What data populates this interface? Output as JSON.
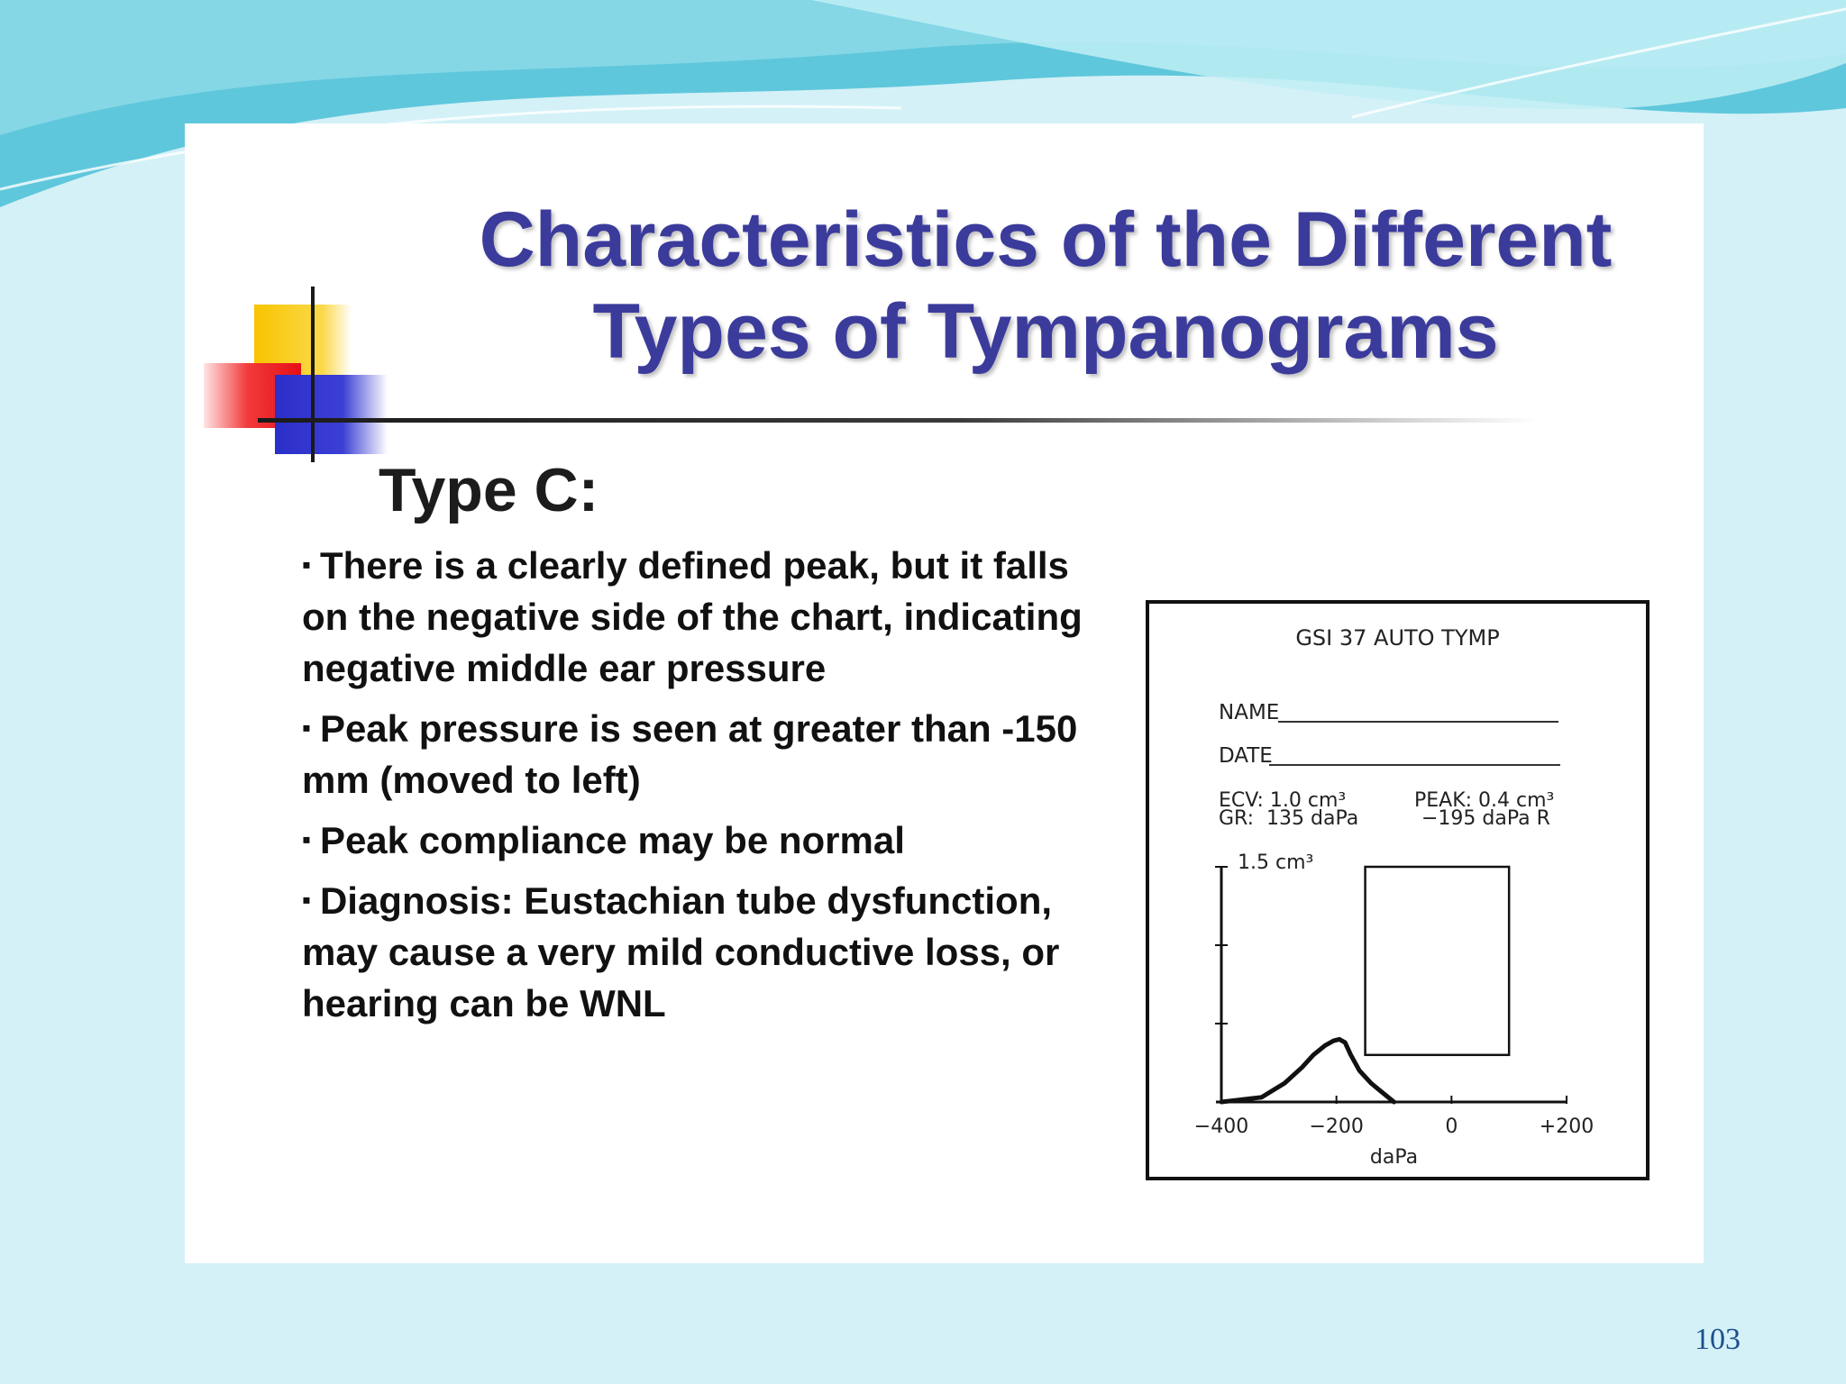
{
  "slide": {
    "title_line1": "Characteristics of the Different",
    "title_line2": "Types of Tympanograms",
    "type_heading": "Type C:",
    "bullets": [
      "There is a clearly defined peak, but it falls on the negative side of the chart, indicating negative middle ear pressure",
      "Peak pressure is seen at greater than -150 mm (moved to left)",
      "Peak compliance may be normal",
      "Diagnosis:  Eustachian tube dysfunction, may cause a very mild conductive loss, or hearing can be WNL"
    ],
    "bullet_marker": "▪",
    "page_number": "103"
  },
  "tympanogram": {
    "heading": "GSI 37 AUTO TYMP",
    "name_label": "NAME",
    "date_label": "DATE",
    "ecv_line": "ECV: 1.0 cm³",
    "gr_line": "GR:  135 daPa",
    "peak_line": "PEAK: 0.4 cm³",
    "peak_pressure_line": "−195 daPa R"
  },
  "chart_data": {
    "type": "line",
    "xlabel": "daPa",
    "ylabel": "1.5 cm³",
    "xlim": [
      -400,
      200
    ],
    "ylim": [
      0,
      1.5
    ],
    "x_ticks": [
      -400,
      -200,
      0,
      200
    ],
    "x_tick_labels": [
      "−400",
      "−200",
      "0",
      "+200"
    ],
    "series": [
      {
        "x": [
          -400,
          -330,
          -290,
          -260,
          -240,
          -220,
          -205,
          -195,
          -185,
          -175,
          -160,
          -140,
          -120,
          -100
        ],
        "y": [
          0.0,
          0.03,
          0.12,
          0.22,
          0.3,
          0.36,
          0.39,
          0.4,
          0.38,
          0.3,
          0.2,
          0.12,
          0.06,
          0.0
        ]
      }
    ],
    "normal_region": {
      "x": [
        -150,
        100
      ],
      "y": [
        0.3,
        1.5
      ]
    },
    "colors": {
      "curve": "#111111",
      "box": "#111111"
    }
  },
  "colors": {
    "title": "#3b3b9c",
    "panel": "#ffffff",
    "background": "#d4f1f7",
    "page_number": "#1c4f8c"
  }
}
